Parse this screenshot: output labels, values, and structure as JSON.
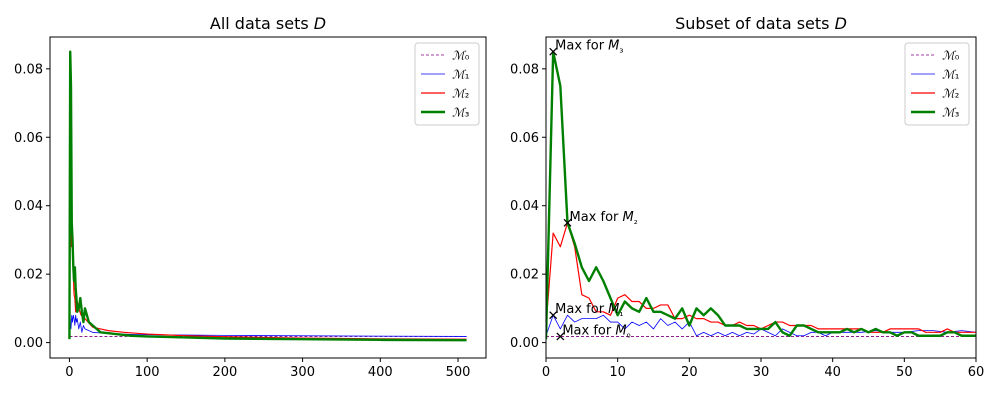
{
  "chart_data": [
    {
      "type": "line",
      "title": "All data sets D",
      "xlabel": "",
      "ylabel": "",
      "xlim": [
        -25,
        536
      ],
      "ylim": [
        -0.0045,
        0.0893
      ],
      "xticks": [
        0,
        100,
        200,
        300,
        400,
        500
      ],
      "yticks": [
        0.0,
        0.02,
        0.04,
        0.06,
        0.08
      ],
      "xtick_labels": [
        "0",
        "100",
        "200",
        "300",
        "400",
        "500"
      ],
      "ytick_labels": [
        "0.00",
        "0.02",
        "0.04",
        "0.06",
        "0.08"
      ],
      "grid": false,
      "legend": "top-right",
      "series": [
        {
          "name": "ℳ₀",
          "color": "#800080",
          "style": "dashed",
          "x": [
            0,
            511
          ],
          "y": [
            0.0018,
            0.0018
          ]
        },
        {
          "name": "ℳ₁",
          "color": "#0000ff",
          "style": "thin",
          "x": [
            0,
            1,
            2,
            3,
            4,
            5,
            6,
            7,
            8,
            9,
            10,
            12,
            14,
            16,
            18,
            20,
            25,
            30,
            40,
            60,
            80,
            100,
            150,
            200,
            300,
            400,
            511
          ],
          "y": [
            0.002,
            0.007,
            0.004,
            0.008,
            0.006,
            0.008,
            0.007,
            0.005,
            0.008,
            0.006,
            0.007,
            0.004,
            0.006,
            0.003,
            0.005,
            0.004,
            0.0035,
            0.003,
            0.0028,
            0.0025,
            0.0024,
            0.0023,
            0.0022,
            0.0021,
            0.002,
            0.0019,
            0.0018
          ]
        },
        {
          "name": "ℳ₂",
          "color": "#ff0000",
          "style": "normal",
          "x": [
            0,
            1,
            2,
            3,
            4,
            5,
            6,
            7,
            8,
            10,
            12,
            15,
            20,
            30,
            40,
            50,
            70,
            100,
            150,
            200,
            300,
            400,
            511
          ],
          "y": [
            0.005,
            0.032,
            0.028,
            0.035,
            0.03,
            0.02,
            0.014,
            0.013,
            0.009,
            0.012,
            0.01,
            0.008,
            0.007,
            0.0045,
            0.004,
            0.0035,
            0.003,
            0.0025,
            0.002,
            0.0017,
            0.0013,
            0.0011,
            0.001
          ]
        },
        {
          "name": "ℳ₃",
          "color": "#008000",
          "style": "thick",
          "x": [
            0,
            1,
            2,
            3,
            4,
            5,
            6,
            7,
            8,
            9,
            10,
            12,
            14,
            16,
            18,
            20,
            25,
            30,
            40,
            60,
            80,
            100,
            150,
            200,
            300,
            400,
            511
          ],
          "y": [
            0.001,
            0.085,
            0.075,
            0.035,
            0.03,
            0.022,
            0.018,
            0.022,
            0.016,
            0.013,
            0.009,
            0.01,
            0.013,
            0.009,
            0.006,
            0.01,
            0.006,
            0.005,
            0.003,
            0.0025,
            0.002,
            0.0018,
            0.0015,
            0.0012,
            0.001,
            0.0008,
            0.0007
          ]
        }
      ]
    },
    {
      "type": "line",
      "title": "Subset of data sets D",
      "xlabel": "",
      "ylabel": "",
      "xlim": [
        0,
        60
      ],
      "ylim": [
        -0.0045,
        0.0893
      ],
      "xticks": [
        0,
        10,
        20,
        30,
        40,
        50,
        60
      ],
      "yticks": [
        0.0,
        0.02,
        0.04,
        0.06,
        0.08
      ],
      "xtick_labels": [
        "0",
        "10",
        "20",
        "30",
        "40",
        "50",
        "60"
      ],
      "ytick_labels": [
        "0.00",
        "0.02",
        "0.04",
        "0.06",
        "0.08"
      ],
      "grid": false,
      "legend": "top-right",
      "series": [
        {
          "name": "ℳ₀",
          "color": "#800080",
          "style": "dashed",
          "x": [
            0,
            60
          ],
          "y": [
            0.0018,
            0.0018
          ]
        },
        {
          "name": "ℳ₁",
          "color": "#0000ff",
          "style": "thin",
          "x": [
            0,
            1,
            2,
            3,
            4,
            5,
            6,
            7,
            8,
            9,
            10,
            11,
            12,
            13,
            14,
            15,
            16,
            17,
            18,
            19,
            20,
            21,
            22,
            23,
            24,
            25,
            26,
            27,
            28,
            29,
            30,
            31,
            32,
            33,
            34,
            35,
            36,
            37,
            38,
            39,
            40,
            42,
            44,
            46,
            48,
            50,
            52,
            54,
            56,
            58,
            60
          ],
          "y": [
            0.002,
            0.008,
            0.004,
            0.008,
            0.006,
            0.007,
            0.007,
            0.007,
            0.008,
            0.006,
            0.006,
            0.004,
            0.006,
            0.005,
            0.006,
            0.004,
            0.007,
            0.005,
            0.006,
            0.004,
            0.006,
            0.002,
            0.003,
            0.002,
            0.003,
            0.002,
            0.003,
            0.002,
            0.003,
            0.0025,
            0.004,
            0.003,
            0.002,
            0.004,
            0.003,
            0.002,
            0.002,
            0.003,
            0.003,
            0.002,
            0.003,
            0.003,
            0.003,
            0.0035,
            0.003,
            0.003,
            0.0035,
            0.0035,
            0.003,
            0.0035,
            0.003
          ]
        },
        {
          "name": "ℳ₂",
          "color": "#ff0000",
          "style": "normal",
          "x": [
            0,
            1,
            2,
            3,
            4,
            5,
            6,
            7,
            8,
            9,
            10,
            11,
            12,
            13,
            14,
            15,
            16,
            17,
            18,
            19,
            20,
            21,
            22,
            23,
            24,
            25,
            26,
            27,
            28,
            29,
            30,
            31,
            32,
            33,
            34,
            35,
            36,
            37,
            38,
            39,
            40,
            41,
            42,
            43,
            44,
            45,
            46,
            47,
            48,
            49,
            50,
            51,
            52,
            53,
            54,
            55,
            56,
            57,
            58,
            59,
            60
          ],
          "y": [
            0.005,
            0.032,
            0.028,
            0.035,
            0.028,
            0.014,
            0.013,
            0.009,
            0.009,
            0.008,
            0.013,
            0.014,
            0.012,
            0.012,
            0.01,
            0.01,
            0.011,
            0.011,
            0.007,
            0.007,
            0.008,
            0.007,
            0.007,
            0.006,
            0.006,
            0.005,
            0.005,
            0.006,
            0.005,
            0.005,
            0.004,
            0.005,
            0.006,
            0.006,
            0.005,
            0.005,
            0.005,
            0.005,
            0.004,
            0.004,
            0.004,
            0.004,
            0.004,
            0.004,
            0.004,
            0.003,
            0.003,
            0.003,
            0.004,
            0.004,
            0.004,
            0.004,
            0.004,
            0.003,
            0.003,
            0.003,
            0.004,
            0.003,
            0.003,
            0.003,
            0.003
          ]
        },
        {
          "name": "ℳ₃",
          "color": "#008000",
          "style": "thick",
          "x": [
            0,
            1,
            2,
            3,
            4,
            5,
            6,
            7,
            8,
            9,
            10,
            11,
            12,
            13,
            14,
            15,
            16,
            17,
            18,
            19,
            20,
            21,
            22,
            23,
            24,
            25,
            26,
            27,
            28,
            29,
            30,
            31,
            32,
            33,
            34,
            35,
            36,
            37,
            38,
            39,
            40,
            41,
            42,
            43,
            44,
            45,
            46,
            47,
            48,
            49,
            50,
            51,
            52,
            53,
            54,
            55,
            56,
            57,
            58,
            59,
            60
          ],
          "y": [
            0.001,
            0.085,
            0.075,
            0.035,
            0.029,
            0.022,
            0.018,
            0.022,
            0.018,
            0.013,
            0.008,
            0.012,
            0.01,
            0.009,
            0.013,
            0.009,
            0.009,
            0.008,
            0.007,
            0.01,
            0.005,
            0.01,
            0.008,
            0.01,
            0.008,
            0.005,
            0.005,
            0.005,
            0.004,
            0.004,
            0.004,
            0.004,
            0.006,
            0.003,
            0.002,
            0.005,
            0.005,
            0.004,
            0.003,
            0.003,
            0.003,
            0.003,
            0.004,
            0.003,
            0.004,
            0.003,
            0.004,
            0.003,
            0.003,
            0.002,
            0.003,
            0.003,
            0.002,
            0.002,
            0.002,
            0.002,
            0.003,
            0.003,
            0.002,
            0.002,
            0.002
          ]
        }
      ],
      "annotations": [
        {
          "text": "Max for M₃",
          "x": 1,
          "y": 0.085
        },
        {
          "text": "Max for M₂",
          "x": 3,
          "y": 0.035
        },
        {
          "text": "Max for M₁",
          "x": 1,
          "y": 0.008
        },
        {
          "text": "Max for M₀",
          "x": 2,
          "y": 0.0018
        }
      ]
    }
  ]
}
